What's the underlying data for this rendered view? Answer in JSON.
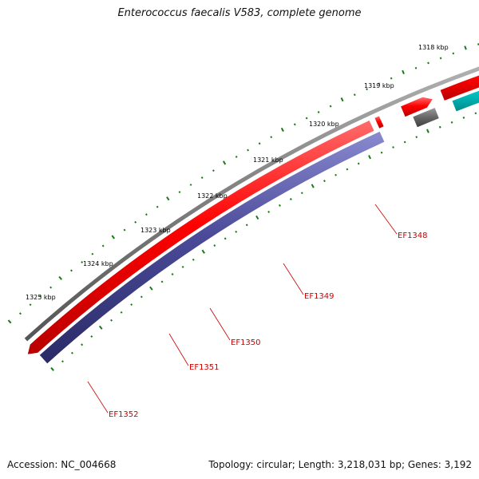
{
  "title": "Enterococcus faecalis V583, complete genome",
  "footer": {
    "accession": "Accession: NC_004668",
    "summary": "Topology: circular; Length: 3,218,031 bp; Genes: 3,192"
  },
  "kbp_labels": [
    "1318 kbp",
    "1319 kbp",
    "1320 kbp",
    "1321 kbp",
    "1322 kbp",
    "1323 kbp",
    "1324 kbp",
    "1325 kbp"
  ],
  "genes": [
    "EF1348",
    "EF1349",
    "EF1350",
    "EF1351",
    "EF1352"
  ],
  "colors": {
    "backbone": "#888888",
    "forward_cds": "#ff0000",
    "gene_ef1348": "#00cccc",
    "gene_ef1349": "#00cccc",
    "gene_ef1350": "#666666",
    "gene_ef1352": "#4a4a99",
    "tick": "#1a7a1a",
    "label": "#cc0000"
  }
}
